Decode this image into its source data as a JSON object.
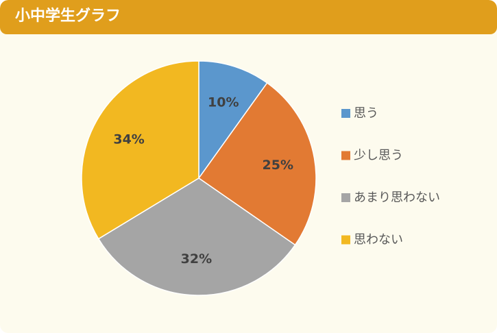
{
  "header": {
    "title": "小中学生グラフ"
  },
  "chart_data": {
    "type": "pie",
    "title": "",
    "categories": [
      "思う",
      "少し思う",
      "あまり思わない",
      "思わない"
    ],
    "values": [
      10,
      25,
      32,
      34
    ],
    "labels": [
      "10%",
      "25%",
      "32%",
      "34%"
    ],
    "colors": [
      "#5b97cd",
      "#e27a33",
      "#a5a5a5",
      "#f2b821"
    ],
    "start": "12 o'clock",
    "direction": "clockwise",
    "legend": "right"
  }
}
